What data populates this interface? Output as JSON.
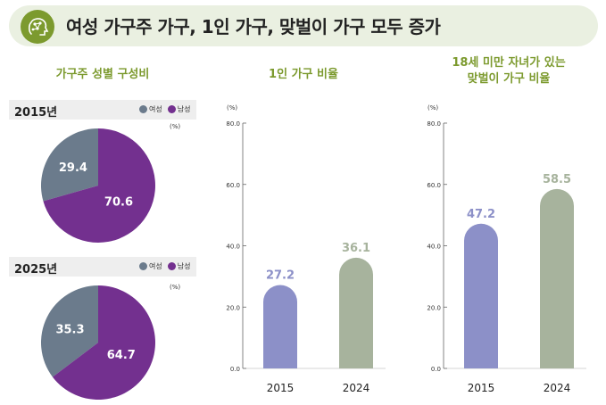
{
  "header": {
    "title": "여성 가구주 가구, 1인 가구, 맞벌이 가구 모두 증가",
    "icon": "brain-network-icon"
  },
  "colors": {
    "green_accent": "#7c9a2e",
    "female": "#6b7b8c",
    "male": "#73308f",
    "bar_2015": "#8c90c8",
    "bar_2024": "#a7b39d"
  },
  "chart_data": [
    {
      "type": "pie",
      "title": "가구주 성별 구성비",
      "year_label": "2015년",
      "unit": "(%)",
      "legend": [
        "여성",
        "남성"
      ],
      "slices": [
        {
          "label": "여성",
          "value": 29.4,
          "display": "29.4"
        },
        {
          "label": "남성",
          "value": 70.6,
          "display": "70.6"
        }
      ]
    },
    {
      "type": "pie",
      "title": "가구주 성별 구성비",
      "year_label": "2025년",
      "unit": "(%)",
      "legend": [
        "여성",
        "남성"
      ],
      "slices": [
        {
          "label": "여성",
          "value": 35.3,
          "display": "35.3"
        },
        {
          "label": "남성",
          "value": 64.7,
          "display": "64.7"
        }
      ]
    },
    {
      "type": "bar",
      "title": "1인 가구 비율",
      "unit": "(%)",
      "categories": [
        "2015",
        "2024"
      ],
      "values": [
        27.2,
        36.1
      ],
      "value_labels": [
        "27.2",
        "36.1"
      ],
      "ylim": [
        0,
        80
      ],
      "yticks": [
        "0.0",
        "20.0",
        "40.0",
        "60.0",
        "80.0"
      ]
    },
    {
      "type": "bar",
      "title": "18세 미만 자녀가 있는 맞벌이 가구 비율",
      "title_lines": [
        "18세 미만 자녀가 있는",
        "맞벌이 가구 비율"
      ],
      "unit": "(%)",
      "categories": [
        "2015",
        "2024"
      ],
      "values": [
        47.2,
        58.5
      ],
      "value_labels": [
        "47.2",
        "58.5"
      ],
      "ylim": [
        0,
        80
      ],
      "yticks": [
        "0.0",
        "20.0",
        "40.0",
        "60.0",
        "80.0"
      ]
    }
  ]
}
